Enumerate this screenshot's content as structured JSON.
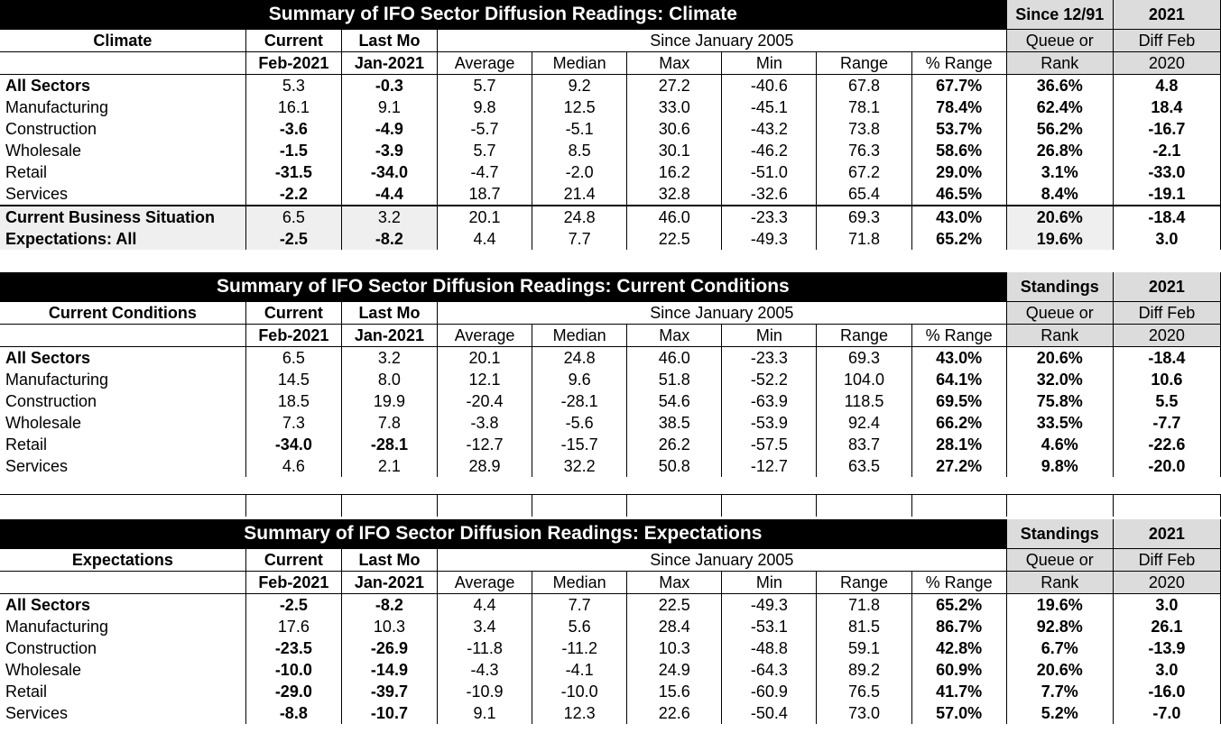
{
  "sections": [
    {
      "title": "Summary of IFO Sector Diffusion Readings: Climate",
      "standings_title": "Since 12/91",
      "diff_title": "2021",
      "label_header": "Climate",
      "current_header": "Current",
      "current_date": "Feb-2021",
      "last_header": "Last Mo",
      "last_date": "Jan-2021",
      "since_header": "Since January 2005",
      "stat_headers": [
        "Average",
        "Median",
        "Max",
        "Min",
        "Range",
        "% Range"
      ],
      "queue_header": "Queue or",
      "rank_header": "Rank",
      "diff_header1": "Diff Feb",
      "diff_header2": "2020",
      "rows": [
        {
          "label": "All Sectors",
          "current": "5.3",
          "last": "-0.3",
          "avg": "5.7",
          "median": "9.2",
          "max": "27.2",
          "min": "-40.6",
          "range": "67.8",
          "pct": "67.7%",
          "rank": "36.6%",
          "diff": "4.8"
        },
        {
          "label": "Manufacturing",
          "current": "16.1",
          "last": "9.1",
          "avg": "9.8",
          "median": "12.5",
          "max": "33.0",
          "min": "-45.1",
          "range": "78.1",
          "pct": "78.4%",
          "rank": "62.4%",
          "diff": "18.4"
        },
        {
          "label": "Construction",
          "current": "-3.6",
          "last": "-4.9",
          "avg": "-5.7",
          "median": "-5.1",
          "max": "30.6",
          "min": "-43.2",
          "range": "73.8",
          "pct": "53.7%",
          "rank": "56.2%",
          "diff": "-16.7"
        },
        {
          "label": "Wholesale",
          "current": "-1.5",
          "last": "-3.9",
          "avg": "5.7",
          "median": "8.5",
          "max": "30.1",
          "min": "-46.2",
          "range": "76.3",
          "pct": "58.6%",
          "rank": "26.8%",
          "diff": "-2.1"
        },
        {
          "label": "Retail",
          "current": "-31.5",
          "last": "-34.0",
          "avg": "-4.7",
          "median": "-2.0",
          "max": "16.2",
          "min": "-51.0",
          "range": "67.2",
          "pct": "29.0%",
          "rank": "3.1%",
          "diff": "-33.0"
        },
        {
          "label": "Services",
          "current": "-2.2",
          "last": "-4.4",
          "avg": "18.7",
          "median": "21.4",
          "max": "32.8",
          "min": "-32.6",
          "range": "65.4",
          "pct": "46.5%",
          "rank": "8.4%",
          "diff": "-19.1"
        }
      ],
      "extra_rows": [
        {
          "label": "Current Business Situation",
          "current": "6.5",
          "last": "3.2",
          "avg": "20.1",
          "median": "24.8",
          "max": "46.0",
          "min": "-23.3",
          "range": "69.3",
          "pct": "43.0%",
          "rank": "20.6%",
          "diff": "-18.4"
        },
        {
          "label": "Expectations: All",
          "current": "-2.5",
          "last": "-8.2",
          "avg": "4.4",
          "median": "7.7",
          "max": "22.5",
          "min": "-49.3",
          "range": "71.8",
          "pct": "65.2%",
          "rank": "19.6%",
          "diff": "3.0"
        }
      ]
    },
    {
      "title": "Summary of IFO Sector Diffusion Readings: Current Conditions",
      "standings_title": "Standings",
      "diff_title": "2021",
      "label_header": "Current Conditions",
      "current_header": "Current",
      "current_date": "Feb-2021",
      "last_header": "Last Mo",
      "last_date": "Jan-2021",
      "since_header": "Since January 2005",
      "stat_headers": [
        "Average",
        "Median",
        "Max",
        "Min",
        "Range",
        "% Range"
      ],
      "queue_header": "Queue or",
      "rank_header": "Rank",
      "diff_header1": "Diff Feb",
      "diff_header2": "2020",
      "rows": [
        {
          "label": "All Sectors",
          "current": "6.5",
          "last": "3.2",
          "avg": "20.1",
          "median": "24.8",
          "max": "46.0",
          "min": "-23.3",
          "range": "69.3",
          "pct": "43.0%",
          "rank": "20.6%",
          "diff": "-18.4"
        },
        {
          "label": "Manufacturing",
          "current": "14.5",
          "last": "8.0",
          "avg": "12.1",
          "median": "9.6",
          "max": "51.8",
          "min": "-52.2",
          "range": "104.0",
          "pct": "64.1%",
          "rank": "32.0%",
          "diff": "10.6"
        },
        {
          "label": "Construction",
          "current": "18.5",
          "last": "19.9",
          "avg": "-20.4",
          "median": "-28.1",
          "max": "54.6",
          "min": "-63.9",
          "range": "118.5",
          "pct": "69.5%",
          "rank": "75.8%",
          "diff": "5.5"
        },
        {
          "label": "Wholesale",
          "current": "7.3",
          "last": "7.8",
          "avg": "-3.8",
          "median": "-5.6",
          "max": "38.5",
          "min": "-53.9",
          "range": "92.4",
          "pct": "66.2%",
          "rank": "33.5%",
          "diff": "-7.7"
        },
        {
          "label": "Retail",
          "current": "-34.0",
          "last": "-28.1",
          "avg": "-12.7",
          "median": "-15.7",
          "max": "26.2",
          "min": "-57.5",
          "range": "83.7",
          "pct": "28.1%",
          "rank": "4.6%",
          "diff": "-22.6"
        },
        {
          "label": "Services",
          "current": "4.6",
          "last": "2.1",
          "avg": "28.9",
          "median": "32.2",
          "max": "50.8",
          "min": "-12.7",
          "range": "63.5",
          "pct": "27.2%",
          "rank": "9.8%",
          "diff": "-20.0"
        }
      ]
    },
    {
      "title": "Summary of IFO Sector Diffusion Readings: Expectations",
      "standings_title": "Standings",
      "diff_title": "2021",
      "label_header": "Expectations",
      "current_header": "Current",
      "current_date": "Feb-2021",
      "last_header": "Last Mo",
      "last_date": "Jan-2021",
      "since_header": "Since January 2005",
      "stat_headers": [
        "Average",
        "Median",
        "Max",
        "Min",
        "Range",
        "% Range"
      ],
      "queue_header": "Queue or",
      "rank_header": "Rank",
      "diff_header1": "Diff Feb",
      "diff_header2": "2020",
      "rows": [
        {
          "label": "All Sectors",
          "current": "-2.5",
          "last": "-8.2",
          "avg": "4.4",
          "median": "7.7",
          "max": "22.5",
          "min": "-49.3",
          "range": "71.8",
          "pct": "65.2%",
          "rank": "19.6%",
          "diff": "3.0"
        },
        {
          "label": "Manufacturing",
          "current": "17.6",
          "last": "10.3",
          "avg": "3.4",
          "median": "5.6",
          "max": "28.4",
          "min": "-53.1",
          "range": "81.5",
          "pct": "86.7%",
          "rank": "92.8%",
          "diff": "26.1"
        },
        {
          "label": "Construction",
          "current": "-23.5",
          "last": "-26.9",
          "avg": "-11.8",
          "median": "-11.2",
          "max": "10.3",
          "min": "-48.8",
          "range": "59.1",
          "pct": "42.8%",
          "rank": "6.7%",
          "diff": "-13.9"
        },
        {
          "label": "Wholesale",
          "current": "-10.0",
          "last": "-14.9",
          "avg": "-4.3",
          "median": "-4.1",
          "max": "24.9",
          "min": "-64.3",
          "range": "89.2",
          "pct": "60.9%",
          "rank": "20.6%",
          "diff": "3.0"
        },
        {
          "label": "Retail",
          "current": "-29.0",
          "last": "-39.7",
          "avg": "-10.9",
          "median": "-10.0",
          "max": "15.6",
          "min": "-60.9",
          "range": "76.5",
          "pct": "41.7%",
          "rank": "7.7%",
          "diff": "-16.0"
        },
        {
          "label": "Services",
          "current": "-8.8",
          "last": "-10.7",
          "avg": "9.1",
          "median": "12.3",
          "max": "22.6",
          "min": "-50.4",
          "range": "73.0",
          "pct": "57.0%",
          "rank": "5.2%",
          "diff": "-7.0"
        }
      ]
    }
  ]
}
